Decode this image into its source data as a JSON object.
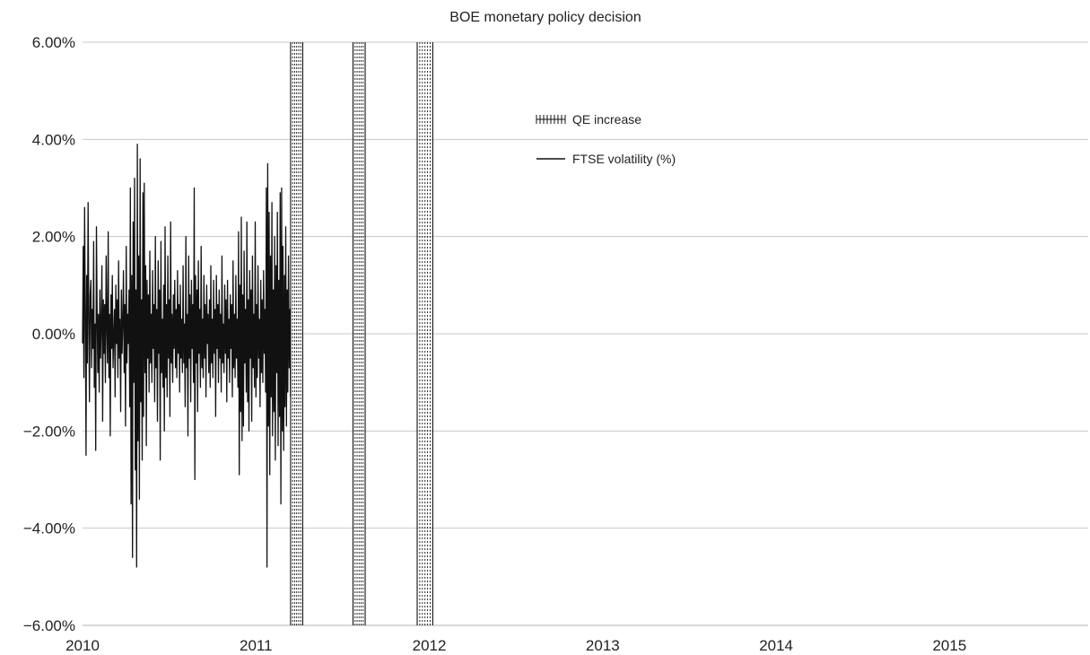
{
  "chart_data": {
    "type": "line",
    "title": "BOE monetary policy decision",
    "xlabel": "",
    "ylabel": "",
    "x_range": [
      2010.0,
      2015.8
    ],
    "x_ticks": [
      "2010",
      "2011",
      "2012",
      "2013",
      "2014",
      "2015"
    ],
    "ylim": [
      -6,
      6
    ],
    "y_ticks": [
      "6.00%",
      "4.00%",
      "2.00%",
      "0.00%",
      "−2.00%",
      "−4.00%",
      "−6.00%"
    ],
    "grid": "horizontal",
    "legend_position": "top-center",
    "series": [
      {
        "name": "FTSE volatility (%)",
        "kind": "line",
        "color": "#111111",
        "note_values": "estimated daily returns read from the plot",
        "x_start": 2010.0,
        "x_step_years": 0.004,
        "values": [
          -0.2,
          1.8,
          -0.9,
          2.6,
          0.4,
          -2.5,
          1.2,
          -0.6,
          2.7,
          0.3,
          -1.4,
          0.8,
          1.1,
          -0.7,
          0.5,
          -0.3,
          1.9,
          -1.1,
          0.2,
          -2.4,
          2.2,
          0.6,
          -0.8,
          0.4,
          -1.2,
          0.9,
          -0.5,
          0.3,
          1.4,
          -1.8,
          0.7,
          -0.4,
          0.6,
          -1.0,
          1.6,
          0.1,
          -0.6,
          2.1,
          -0.9,
          0.4,
          -2.1,
          0.8,
          -0.3,
          1.2,
          -0.7,
          0.0,
          0.5,
          -1.3,
          1.0,
          -0.2,
          0.7,
          -0.9,
          1.5,
          -0.5,
          0.3,
          -1.6,
          0.9,
          -0.4,
          0.2,
          1.3,
          -0.8,
          0.6,
          -1.9,
          1.8,
          -0.6,
          0.4,
          -0.2,
          0.9,
          -1.5,
          3.0,
          -3.5,
          1.2,
          -4.6,
          2.3,
          -1.0,
          3.2,
          -2.8,
          0.9,
          -4.8,
          3.9,
          -2.2,
          1.6,
          -3.4,
          3.6,
          -1.4,
          0.7,
          -2.6,
          2.9,
          -1.7,
          3.1,
          -0.8,
          1.4,
          -2.3,
          1.1,
          -0.5,
          0.8,
          -1.2,
          1.7,
          -0.6,
          0.4,
          -1.0,
          1.3,
          -0.3,
          0.6,
          -1.4,
          2.0,
          -0.7,
          0.5,
          -1.8,
          1.5,
          -0.4,
          0.9,
          -2.6,
          1.9,
          -0.8,
          0.3,
          -1.1,
          1.0,
          -2.0,
          2.2,
          -0.9,
          0.6,
          -1.3,
          1.6,
          -0.5,
          0.7,
          -1.7,
          2.3,
          -0.6,
          0.4,
          -1.0,
          0.8,
          -0.3,
          1.1,
          -0.7,
          0.5,
          -0.9,
          1.3,
          -0.4,
          0.6,
          -1.2,
          1.0,
          -0.5,
          0.3,
          -0.8,
          1.4,
          -0.6,
          0.2,
          -1.5,
          2.0,
          -0.7,
          0.4,
          -2.1,
          1.6,
          -0.5,
          0.8,
          -1.4,
          1.1,
          -0.3,
          0.6,
          -1.0,
          3.0,
          -3.0,
          1.2,
          -0.6,
          0.9,
          -1.6,
          1.5,
          -0.4,
          0.5,
          -1.1,
          1.8,
          -0.7,
          0.3,
          -0.9,
          1.2,
          -0.5,
          0.6,
          -1.3,
          1.0,
          -0.2,
          0.4,
          -0.8,
          0.7,
          -1.1,
          1.4,
          -0.6,
          0.3,
          -0.9,
          1.1,
          -0.4,
          0.5,
          -1.7,
          1.2,
          -0.3,
          0.6,
          -1.0,
          0.9,
          -0.5,
          0.4,
          -1.2,
          1.6,
          -0.6,
          0.2,
          -0.8,
          1.0,
          -0.4,
          0.7,
          -1.4,
          1.1,
          -0.5,
          0.3,
          -1.0,
          0.8,
          -0.3,
          0.6,
          -1.3,
          1.5,
          -0.7,
          0.4,
          -0.9,
          1.2,
          -0.5,
          0.3,
          -1.1,
          2.1,
          -2.9,
          1.0,
          -1.6,
          2.4,
          -2.2,
          0.8,
          -1.9,
          1.7,
          -0.6,
          0.5,
          -1.2,
          2.3,
          -1.4,
          0.7,
          -2.0,
          1.3,
          -0.5,
          0.9,
          -1.8,
          1.6,
          -0.7,
          0.4,
          -1.1,
          2.3,
          -1.3,
          0.6,
          -0.9,
          1.4,
          -0.5,
          0.3,
          -1.5,
          1.1,
          -0.8,
          0.7,
          -1.0,
          1.3,
          -0.4,
          0.5,
          -1.2,
          3.0,
          -4.8,
          3.5,
          -1.9,
          2.5,
          -2.9,
          1.6,
          -1.3,
          2.7,
          -2.1,
          0.9,
          -1.6,
          2.0,
          -2.6,
          1.4,
          -0.8,
          2.5,
          -2.3,
          1.1,
          -1.7,
          2.9,
          -3.5,
          3.0,
          -2.0,
          1.8,
          -2.4,
          1.2,
          -1.5,
          2.2,
          -1.9,
          0.9,
          -1.2,
          1.6,
          -0.7,
          0.5,
          -1.3
        ]
      },
      {
        "name": "QE increase",
        "kind": "bands",
        "pattern": "vertical dashed",
        "bands": [
          [
            2011.2,
            2011.27
          ],
          [
            2011.56,
            2011.63
          ],
          [
            2011.93,
            2012.02
          ]
        ]
      }
    ]
  }
}
